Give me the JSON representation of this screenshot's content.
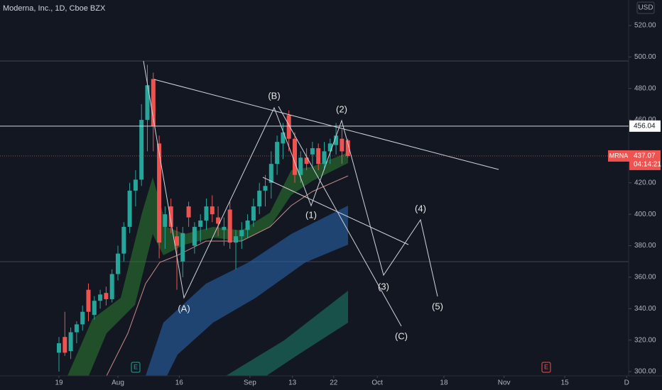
{
  "chart_data": {
    "type": "candlestick",
    "title": "Moderna, Inc., 1D, Cboe BZX",
    "currency": "USD",
    "up_color": "#26a69a",
    "down_color": "#ef5350",
    "open": [
      312,
      322,
      313,
      325,
      330,
      352,
      336,
      345,
      350,
      346,
      362,
      375,
      392,
      415,
      422,
      460,
      486,
      445,
      392,
      405,
      386,
      370,
      405,
      380,
      392,
      396,
      405,
      398,
      390,
      403,
      382,
      386,
      390,
      396,
      405,
      415,
      420,
      432,
      445,
      463,
      448,
      425,
      436,
      438,
      442,
      432,
      440,
      444,
      448,
      447
    ],
    "high": [
      322,
      338,
      328,
      332,
      342,
      356,
      348,
      352,
      354,
      365,
      380,
      395,
      420,
      428,
      470,
      495,
      490,
      450,
      405,
      410,
      392,
      392,
      408,
      395,
      400,
      410,
      412,
      405,
      398,
      408,
      390,
      395,
      400,
      410,
      420,
      425,
      440,
      450,
      458,
      466,
      452,
      440,
      442,
      446,
      445,
      446,
      448,
      458,
      454,
      448
    ],
    "low": [
      300,
      310,
      308,
      318,
      326,
      332,
      333,
      340,
      342,
      344,
      358,
      370,
      388,
      405,
      418,
      440,
      440,
      372,
      378,
      388,
      352,
      360,
      392,
      375,
      382,
      390,
      395,
      386,
      380,
      378,
      365,
      378,
      385,
      392,
      400,
      405,
      410,
      425,
      435,
      440,
      420,
      420,
      428,
      430,
      428,
      428,
      432,
      438,
      432,
      436
    ],
    "close": [
      318,
      312,
      325,
      330,
      338,
      338,
      345,
      349,
      346,
      362,
      375,
      392,
      415,
      422,
      460,
      482,
      456,
      382,
      400,
      392,
      380,
      388,
      398,
      392,
      396,
      405,
      400,
      394,
      392,
      382,
      386,
      390,
      396,
      405,
      415,
      418,
      432,
      446,
      452,
      448,
      425,
      436,
      432,
      442,
      432,
      440,
      445,
      450,
      440,
      437
    ],
    "ylim": [
      297.3,
      536.2
    ],
    "yticks": [
      {
        "value": 300,
        "label": "300.00"
      },
      {
        "value": 320,
        "label": "320.00"
      },
      {
        "value": 340,
        "label": "340.00"
      },
      {
        "value": 360,
        "label": "360.00"
      },
      {
        "value": 380,
        "label": "380.00"
      },
      {
        "value": 400,
        "label": "400.00"
      },
      {
        "value": 420,
        "label": "420.00"
      },
      {
        "value": 460,
        "label": "460.00"
      },
      {
        "value": 480,
        "label": "480.00"
      },
      {
        "value": 500,
        "label": "500.00"
      },
      {
        "value": 520,
        "label": "520.00"
      }
    ],
    "xticks": [
      {
        "value": 0,
        "label": "19"
      },
      {
        "value": 10,
        "label": "Aug"
      },
      {
        "value": 20.4,
        "label": "16"
      },
      {
        "value": 32.4,
        "label": "Sep"
      },
      {
        "value": 39.6,
        "label": "13"
      },
      {
        "value": 46.6,
        "label": "22"
      },
      {
        "value": 54,
        "label": "Oct"
      },
      {
        "value": 65.3,
        "label": "18"
      },
      {
        "value": 75.5,
        "label": "Nov"
      },
      {
        "value": 85.8,
        "label": "15"
      },
      {
        "value": 96.3,
        "label": "D"
      }
    ],
    "price_line": {
      "value": 456.04,
      "label": "456.04"
    },
    "last_price": {
      "symbol": "MRNA",
      "value": 437.07,
      "label": "437.07",
      "countdown": "04:14:21"
    },
    "wave_labels": [
      "(A)",
      "(B)",
      "(1)",
      "(2)",
      "(3)",
      "(4)",
      "(5)",
      "(C)"
    ],
    "events": [
      "E",
      "E"
    ]
  }
}
